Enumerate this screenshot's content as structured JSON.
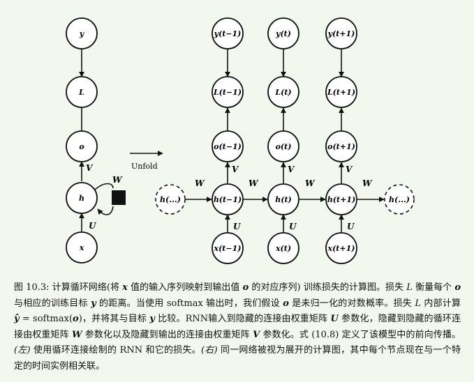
{
  "figure": {
    "folded": {
      "nodes": {
        "y": "y",
        "L": "L",
        "o": "o",
        "h": "h",
        "x": "x"
      },
      "edges": {
        "V": "V",
        "W": "W",
        "U": "U"
      }
    },
    "unfold_label": "Unfold",
    "unfolded": {
      "nodes": {
        "y_prev": "y(t−1)",
        "y_cur": "y(t)",
        "y_next": "y(t+1)",
        "L_prev": "L(t−1)",
        "L_cur": "L(t)",
        "L_next": "L(t+1)",
        "o_prev": "o(t−1)",
        "o_cur": "o(t)",
        "o_next": "o(t+1)",
        "h_dots_left": "h(...)",
        "h_prev": "h(t−1)",
        "h_cur": "h(t)",
        "h_next": "h(t+1)",
        "h_dots_right": "h(...)",
        "x_prev": "x(t−1)",
        "x_cur": "x(t)",
        "x_next": "x(t+1)"
      },
      "edges": {
        "V": "V",
        "W": "W",
        "U": "U"
      }
    }
  },
  "caption": {
    "p1": "图 10.3: 计算循环网络(将 ",
    "x": "x",
    "p2": " 值的输入序列映射到输出值 ",
    "o": "o",
    "p3": " 的对应序列) 训练损失的计算图。损失 ",
    "L": "L",
    "p4": " 衡量每个 ",
    "o2": "o",
    "p5": " 与相应的训练目标 ",
    "y": "y",
    "p6": " 的距离。当使用 softmax 输出时，我们假设 ",
    "o3": "o",
    "p7": " 是未归一化的对数概率。损失 ",
    "L2": "L",
    "p8": " 内部计算 ",
    "yhat": "ŷ",
    "p9": " = softmax(",
    "o4": "o",
    "p10": ")，并将其与目标 ",
    "y2": "y",
    "p11": " 比较。RNN输入到隐藏的连接由权重矩阵 ",
    "U": "U",
    "p12": " 参数化，隐藏到隐藏的循环连接由权重矩阵 ",
    "W": "W",
    "p13": " 参数化以及隐藏到输出的连接由权重矩阵 ",
    "V": "V",
    "p14": " 参数化。式 (10.8) 定义了该模型中的前向传播。",
    "left": "(左)",
    "p15": " 使用循环连接绘制的 RNN 和它的损失。",
    "right": "(右)",
    "p16": " 同一网络被视为展开的计算图，其中每个节点现在与一个特定的时间实例相关联。"
  }
}
